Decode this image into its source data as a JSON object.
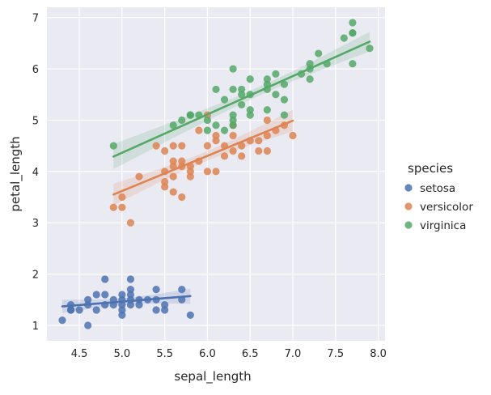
{
  "chart_data": {
    "type": "scatter",
    "xlabel": "sepal_length",
    "ylabel": "petal_length",
    "xlim": [
      4.12,
      8.08
    ],
    "ylim": [
      0.7,
      7.2
    ],
    "xticks": [
      4.5,
      5.0,
      5.5,
      6.0,
      6.5,
      7.0,
      7.5,
      8.0
    ],
    "xtick_labels": [
      "4.5",
      "5.0",
      "5.5",
      "6.0",
      "6.5",
      "7.0",
      "7.5",
      "8.0"
    ],
    "yticks": [
      1,
      2,
      3,
      4,
      5,
      6,
      7
    ],
    "ytick_labels": [
      "1",
      "2",
      "3",
      "4",
      "5",
      "6",
      "7"
    ],
    "grid": true,
    "legend_title": "species",
    "legend_position": "right",
    "series": [
      {
        "name": "setosa",
        "color": "#4c72b0",
        "fit": {
          "x": [
            4.3,
            5.8
          ],
          "y": [
            1.37,
            1.57
          ]
        },
        "points": [
          [
            4.3,
            1.1
          ],
          [
            4.4,
            1.3
          ],
          [
            4.4,
            1.4
          ],
          [
            4.4,
            1.3
          ],
          [
            4.5,
            1.3
          ],
          [
            4.6,
            1.4
          ],
          [
            4.6,
            1.5
          ],
          [
            4.6,
            1.0
          ],
          [
            4.7,
            1.3
          ],
          [
            4.7,
            1.6
          ],
          [
            4.8,
            1.6
          ],
          [
            4.8,
            1.4
          ],
          [
            4.8,
            1.9
          ],
          [
            4.9,
            1.4
          ],
          [
            4.9,
            1.5
          ],
          [
            5.0,
            1.4
          ],
          [
            5.0,
            1.5
          ],
          [
            5.0,
            1.6
          ],
          [
            5.0,
            1.2
          ],
          [
            5.0,
            1.3
          ],
          [
            5.1,
            1.4
          ],
          [
            5.1,
            1.5
          ],
          [
            5.1,
            1.7
          ],
          [
            5.1,
            1.9
          ],
          [
            5.1,
            1.6
          ],
          [
            5.2,
            1.5
          ],
          [
            5.2,
            1.4
          ],
          [
            5.3,
            1.5
          ],
          [
            5.4,
            1.7
          ],
          [
            5.4,
            1.5
          ],
          [
            5.4,
            1.3
          ],
          [
            5.5,
            1.4
          ],
          [
            5.5,
            1.3
          ],
          [
            5.7,
            1.7
          ],
          [
            5.7,
            1.5
          ],
          [
            5.8,
            1.2
          ]
        ]
      },
      {
        "name": "versicolor",
        "color": "#dd8452",
        "fit": {
          "x": [
            4.9,
            7.0
          ],
          "y": [
            3.55,
            4.99
          ]
        },
        "points": [
          [
            4.9,
            3.3
          ],
          [
            5.0,
            3.5
          ],
          [
            5.0,
            3.3
          ],
          [
            5.1,
            3.0
          ],
          [
            5.2,
            3.9
          ],
          [
            5.4,
            4.5
          ],
          [
            5.5,
            4.0
          ],
          [
            5.5,
            4.4
          ],
          [
            5.5,
            3.8
          ],
          [
            5.5,
            3.7
          ],
          [
            5.6,
            4.5
          ],
          [
            5.6,
            3.6
          ],
          [
            5.6,
            4.2
          ],
          [
            5.6,
            3.9
          ],
          [
            5.6,
            4.1
          ],
          [
            5.7,
            3.5
          ],
          [
            5.7,
            4.5
          ],
          [
            5.7,
            4.2
          ],
          [
            5.7,
            4.1
          ],
          [
            5.8,
            4.1
          ],
          [
            5.8,
            4.0
          ],
          [
            5.8,
            3.9
          ],
          [
            5.9,
            4.2
          ],
          [
            5.9,
            4.8
          ],
          [
            6.0,
            4.5
          ],
          [
            6.0,
            4.0
          ],
          [
            6.0,
            5.1
          ],
          [
            6.1,
            4.7
          ],
          [
            6.1,
            4.6
          ],
          [
            6.1,
            4.0
          ],
          [
            6.2,
            4.3
          ],
          [
            6.2,
            4.5
          ],
          [
            6.3,
            4.7
          ],
          [
            6.3,
            4.4
          ],
          [
            6.3,
            4.9
          ],
          [
            6.4,
            4.5
          ],
          [
            6.4,
            4.3
          ],
          [
            6.5,
            4.6
          ],
          [
            6.6,
            4.6
          ],
          [
            6.6,
            4.4
          ],
          [
            6.7,
            4.7
          ],
          [
            6.7,
            4.4
          ],
          [
            6.7,
            5.0
          ],
          [
            6.8,
            4.8
          ],
          [
            6.9,
            4.9
          ],
          [
            7.0,
            4.7
          ]
        ]
      },
      {
        "name": "virginica",
        "color": "#55a868",
        "fit": {
          "x": [
            4.9,
            7.9
          ],
          "y": [
            4.29,
            6.53
          ]
        },
        "points": [
          [
            4.9,
            4.5
          ],
          [
            5.6,
            4.9
          ],
          [
            5.7,
            5.0
          ],
          [
            5.8,
            5.1
          ],
          [
            5.8,
            5.1
          ],
          [
            5.9,
            5.1
          ],
          [
            6.0,
            5.0
          ],
          [
            6.0,
            4.8
          ],
          [
            6.1,
            5.6
          ],
          [
            6.1,
            4.9
          ],
          [
            6.2,
            4.8
          ],
          [
            6.2,
            5.4
          ],
          [
            6.3,
            6.0
          ],
          [
            6.3,
            5.6
          ],
          [
            6.3,
            5.1
          ],
          [
            6.3,
            5.0
          ],
          [
            6.3,
            4.9
          ],
          [
            6.4,
            5.6
          ],
          [
            6.4,
            5.5
          ],
          [
            6.4,
            5.3
          ],
          [
            6.5,
            5.5
          ],
          [
            6.5,
            5.8
          ],
          [
            6.5,
            5.1
          ],
          [
            6.5,
            5.2
          ],
          [
            6.7,
            5.8
          ],
          [
            6.7,
            5.7
          ],
          [
            6.7,
            5.6
          ],
          [
            6.7,
            5.2
          ],
          [
            6.8,
            5.5
          ],
          [
            6.8,
            5.9
          ],
          [
            6.9,
            5.7
          ],
          [
            6.9,
            5.4
          ],
          [
            6.9,
            5.1
          ],
          [
            7.1,
            5.9
          ],
          [
            7.2,
            6.0
          ],
          [
            7.2,
            5.8
          ],
          [
            7.2,
            6.1
          ],
          [
            7.3,
            6.3
          ],
          [
            7.4,
            6.1
          ],
          [
            7.6,
            6.6
          ],
          [
            7.7,
            6.7
          ],
          [
            7.7,
            6.9
          ],
          [
            7.7,
            6.7
          ],
          [
            7.7,
            6.1
          ],
          [
            7.9,
            6.4
          ]
        ]
      }
    ]
  }
}
